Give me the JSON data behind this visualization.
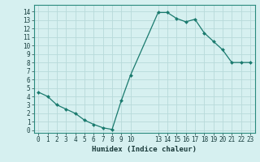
{
  "x": [
    0,
    1,
    2,
    3,
    4,
    5,
    6,
    7,
    8,
    9,
    10,
    13,
    14,
    15,
    16,
    17,
    18,
    19,
    20,
    21,
    22,
    23
  ],
  "y": [
    4.5,
    4.0,
    3.0,
    2.5,
    2.0,
    1.2,
    0.7,
    0.3,
    0.1,
    3.5,
    6.5,
    13.9,
    13.9,
    13.2,
    12.8,
    13.1,
    11.5,
    10.5,
    9.5,
    8.0,
    8.0,
    8.0
  ],
  "line_color": "#1a7a6e",
  "marker_color": "#1a7a6e",
  "bg_color": "#d6f0f0",
  "grid_color": "#b8dada",
  "xlabel": "Humidex (Indice chaleur)",
  "xticks": [
    0,
    1,
    2,
    3,
    4,
    5,
    6,
    7,
    8,
    9,
    10,
    13,
    14,
    15,
    16,
    17,
    18,
    19,
    20,
    21,
    22,
    23
  ],
  "yticks": [
    0,
    1,
    2,
    3,
    4,
    5,
    6,
    7,
    8,
    9,
    10,
    11,
    12,
    13,
    14
  ],
  "ylim": [
    -0.3,
    14.8
  ],
  "xlim": [
    -0.5,
    23.5
  ],
  "tick_fontsize": 5.5,
  "xlabel_fontsize": 6.5,
  "marker_size": 2.0,
  "line_width": 0.9
}
